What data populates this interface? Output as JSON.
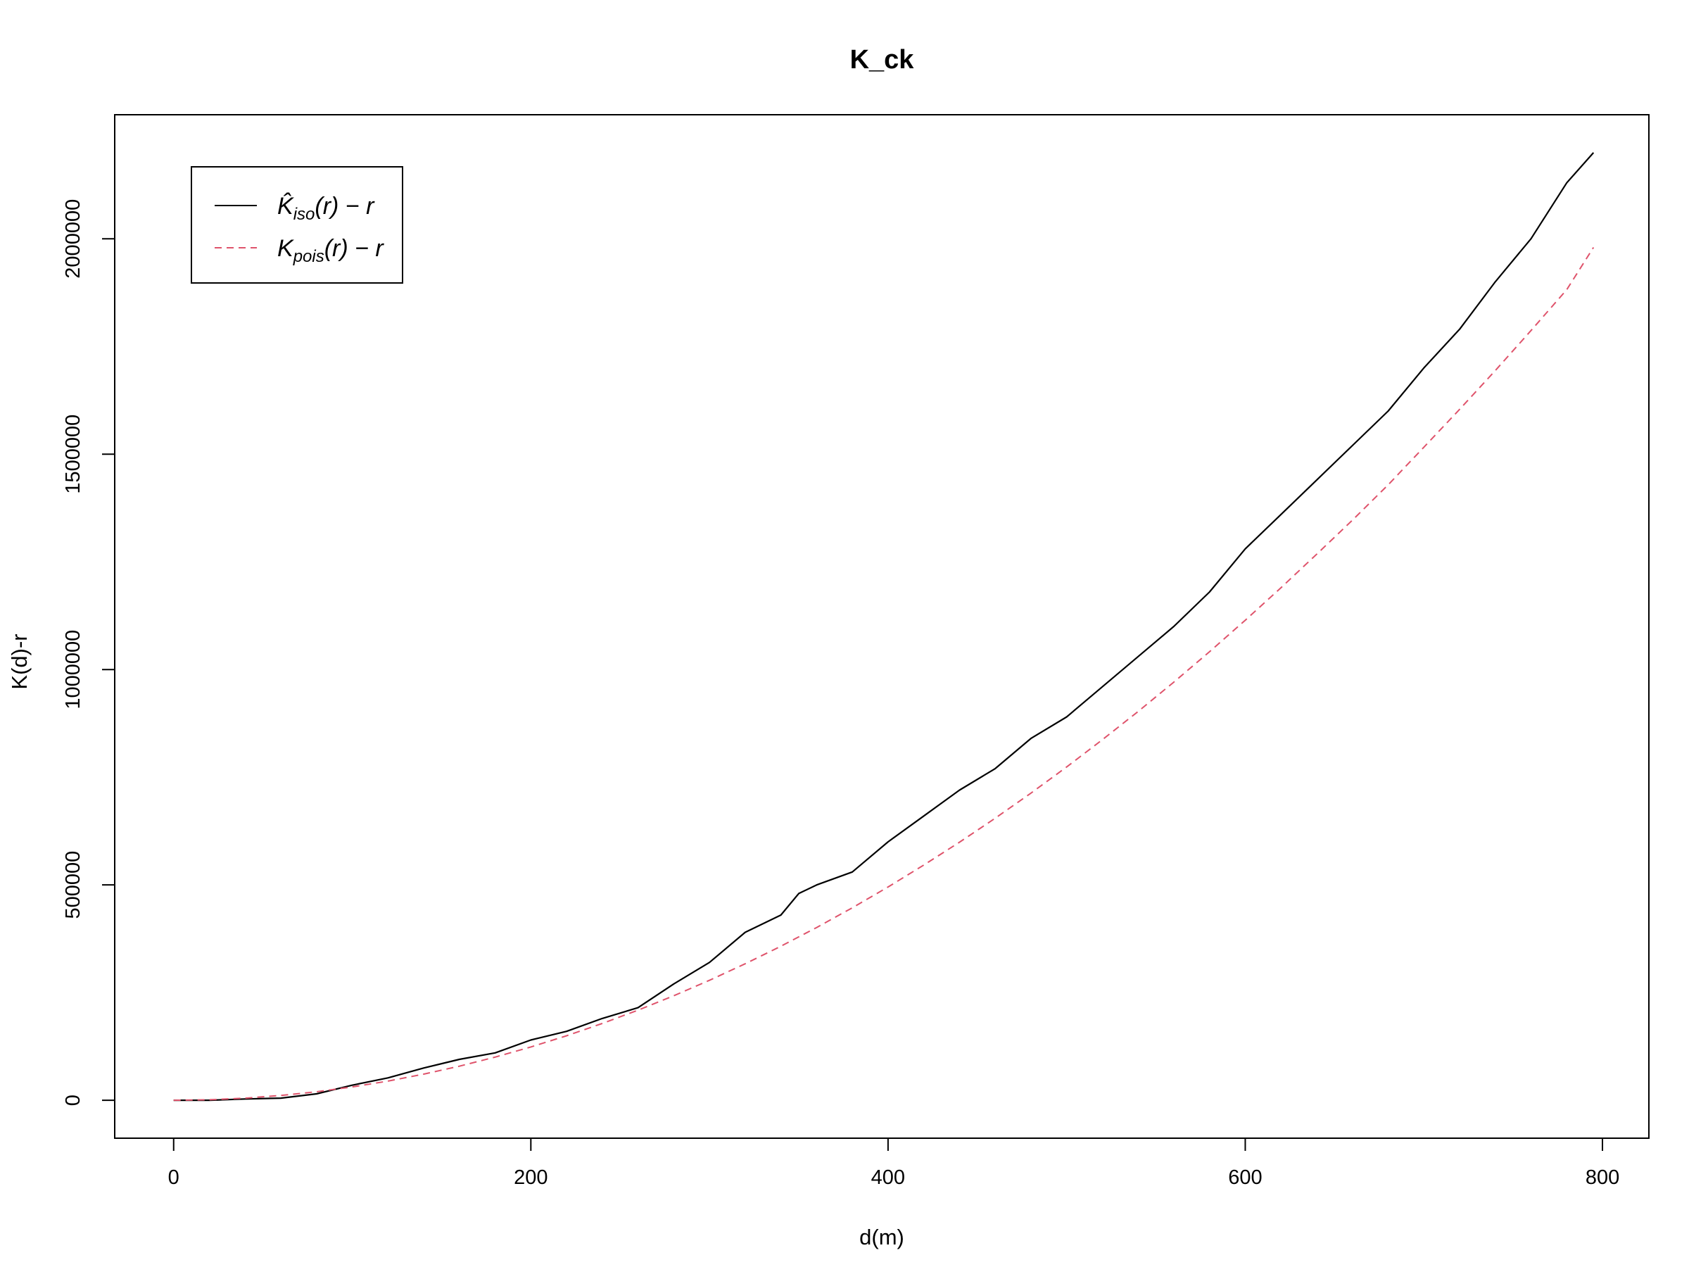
{
  "chart_data": {
    "type": "line",
    "title": "K_ck",
    "xlabel": "d(m)",
    "ylabel": "K(d)-r",
    "xlim": [
      -33,
      826
    ],
    "ylim": [
      -88000,
      2288000
    ],
    "x_ticks": [
      0,
      200,
      400,
      600,
      800
    ],
    "y_ticks": [
      0,
      500000,
      1000000,
      1500000,
      2000000
    ],
    "grid": false,
    "legend_position": "top-left",
    "series": [
      {
        "name": "K̂iso(r) − r",
        "legend": {
          "main": "K̂",
          "sub": "iso",
          "rest": "(r) − r"
        },
        "color": "#000000",
        "dash": "solid",
        "x": [
          0,
          20,
          40,
          60,
          80,
          100,
          120,
          140,
          160,
          180,
          200,
          220,
          240,
          260,
          280,
          300,
          320,
          340,
          350,
          360,
          380,
          400,
          420,
          440,
          460,
          480,
          500,
          520,
          540,
          560,
          580,
          600,
          620,
          640,
          660,
          680,
          700,
          720,
          740,
          760,
          780,
          795
        ],
        "y": [
          0,
          0,
          3000,
          5000,
          15000,
          35000,
          52000,
          75000,
          95000,
          110000,
          140000,
          160000,
          190000,
          215000,
          270000,
          320000,
          390000,
          430000,
          480000,
          500000,
          530000,
          600000,
          660000,
          720000,
          770000,
          840000,
          890000,
          960000,
          1030000,
          1100000,
          1180000,
          1280000,
          1360000,
          1440000,
          1520000,
          1600000,
          1700000,
          1790000,
          1900000,
          2000000,
          2130000,
          2200000
        ]
      },
      {
        "name": "Kpois(r) − r",
        "legend": {
          "main": "K",
          "sub": "pois",
          "rest": "(r) − r"
        },
        "color": "#df536b",
        "dash": "dashed",
        "x": [
          0,
          20,
          40,
          60,
          80,
          100,
          120,
          140,
          160,
          180,
          200,
          220,
          240,
          260,
          280,
          300,
          320,
          340,
          360,
          380,
          400,
          420,
          440,
          460,
          480,
          500,
          520,
          540,
          560,
          580,
          600,
          620,
          640,
          660,
          680,
          700,
          720,
          740,
          760,
          780,
          795
        ],
        "y": [
          0,
          1237,
          4950,
          11140,
          19800,
          30950,
          44570,
          60670,
          79240,
          100300,
          123800,
          149800,
          178300,
          209200,
          242600,
          278500,
          316900,
          357700,
          401100,
          446900,
          495200,
          546000,
          599200,
          654900,
          713100,
          773800,
          837000,
          902600,
          970700,
          1041300,
          1114300,
          1189800,
          1267800,
          1346800,
          1428800,
          1516000,
          1604000,
          1694000,
          1787000,
          1882000,
          1980000
        ]
      }
    ]
  }
}
